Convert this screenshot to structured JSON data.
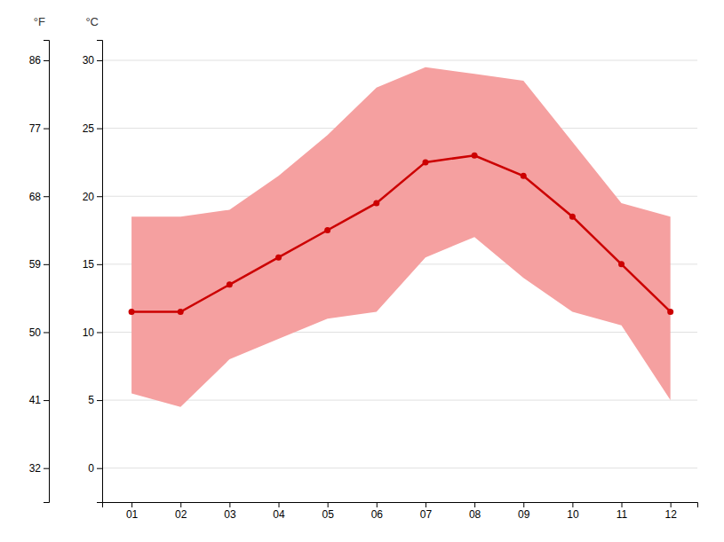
{
  "chart_data": {
    "type": "line",
    "x": [
      1,
      2,
      3,
      4,
      5,
      6,
      7,
      8,
      9,
      10,
      11,
      12
    ],
    "series": [
      {
        "type": "area",
        "color": "#f5a0a0",
        "low": [
          5.5,
          4.5,
          8.0,
          9.5,
          11.0,
          11.5,
          15.5,
          17.0,
          14.0,
          11.5,
          10.5,
          5.0
        ],
        "high": [
          18.5,
          18.5,
          19.0,
          21.5,
          24.5,
          28.0,
          29.5,
          29.0,
          28.5,
          24.0,
          19.5,
          18.5
        ]
      },
      {
        "type": "line",
        "color": "#cc0000",
        "marker": "circle",
        "values": [
          11.5,
          11.5,
          13.5,
          15.5,
          17.5,
          19.5,
          22.5,
          23.0,
          21.5,
          18.5,
          15.0,
          11.5
        ]
      }
    ],
    "xlim": [
      0.4,
      12.55
    ],
    "xticks": [
      {
        "value": 1,
        "label": "01"
      },
      {
        "value": 2,
        "label": "02"
      },
      {
        "value": 3,
        "label": "03"
      },
      {
        "value": 4,
        "label": "04"
      },
      {
        "value": 5,
        "label": "05"
      },
      {
        "value": 6,
        "label": "06"
      },
      {
        "value": 7,
        "label": "07"
      },
      {
        "value": 8,
        "label": "08"
      },
      {
        "value": 9,
        "label": "09"
      },
      {
        "value": 10,
        "label": "10"
      },
      {
        "value": 11,
        "label": "11"
      },
      {
        "value": 12,
        "label": "12"
      }
    ],
    "ylim": [
      -2.5,
      31.5
    ],
    "yticks": [
      0,
      5,
      10,
      15,
      20,
      25,
      30
    ],
    "ylabel": "°C",
    "y2lim": [
      27.5,
      88.7
    ],
    "y2ticks": [
      32,
      41,
      50,
      59,
      68,
      77,
      86
    ],
    "y2label": "°F",
    "grid": true
  }
}
